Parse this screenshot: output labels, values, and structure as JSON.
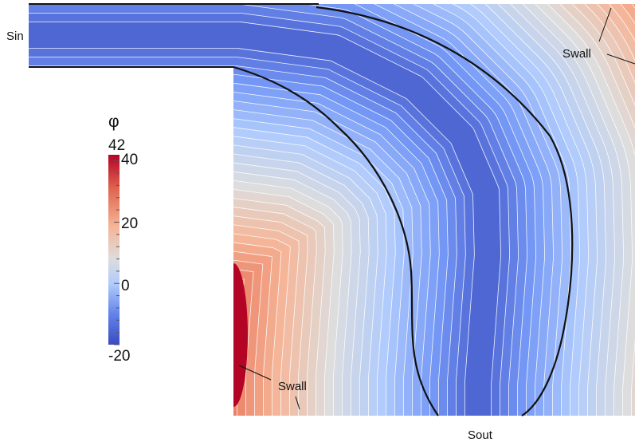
{
  "colorbar": {
    "symbol": "φ",
    "max_label": "42",
    "tick_labels": [
      "40",
      "20",
      "0",
      "-20"
    ],
    "tick_values": [
      40,
      20,
      0,
      -20
    ],
    "min": -20,
    "max": 42,
    "colormap": [
      "#3b4cc0",
      "#7396f5",
      "#b0cbfc",
      "#dddddd",
      "#f5b597",
      "#e7745b",
      "#b40426"
    ]
  },
  "labels": {
    "inlet": "Sin",
    "outlet": "Sout",
    "wall_top": "Swall",
    "wall_bottom": "Swall"
  },
  "colors": {
    "contour": "#ffffff",
    "boundary": "#111111"
  }
}
